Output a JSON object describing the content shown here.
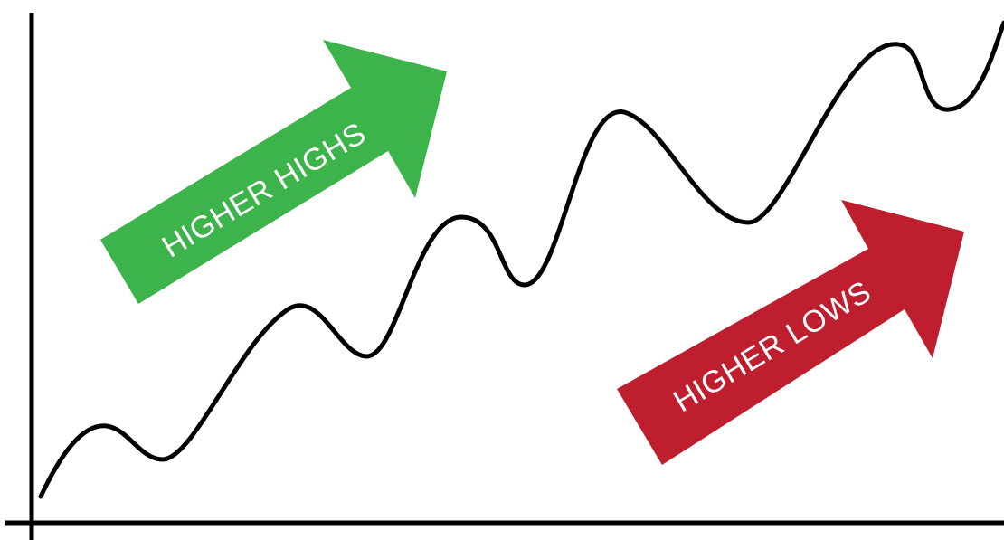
{
  "labels": {
    "green_arrow": "HIGHER HIGHS",
    "red_arrow": "HIGHER LOWS"
  },
  "colors": {
    "green_arrow": "#3cb44b",
    "red_arrow": "#be1e2d",
    "line": "#000000",
    "axes": "#000000",
    "background": "#ffffff"
  }
}
